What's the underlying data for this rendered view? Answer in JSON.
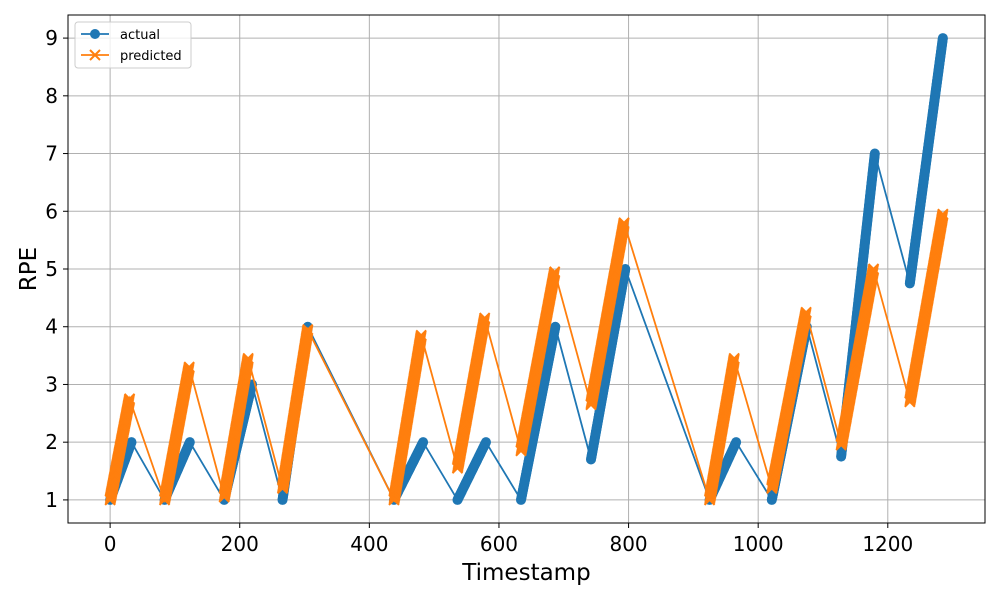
{
  "chart_data": {
    "type": "line",
    "title": "",
    "xlabel": "Timestamp",
    "ylabel": "RPE",
    "xlim": [
      -65,
      1350
    ],
    "ylim": [
      0.6,
      9.4
    ],
    "xticks": [
      0,
      200,
      400,
      600,
      800,
      1000,
      1200
    ],
    "yticks": [
      1,
      2,
      3,
      4,
      5,
      6,
      7,
      8,
      9
    ],
    "grid": true,
    "legend": "top-left",
    "series": [
      {
        "name": "actual",
        "color": "#1f77b4",
        "marker": "circle",
        "segments": [
          {
            "x": [
              0,
              33
            ],
            "y": [
              1,
              2
            ]
          },
          {
            "x": [
              84,
              123
            ],
            "y": [
              1,
              2
            ]
          },
          {
            "x": [
              176,
              219
            ],
            "y": [
              1,
              3
            ]
          },
          {
            "x": [
              266,
              305
            ],
            "y": [
              1,
              4
            ]
          },
          {
            "x": [
              438,
              483
            ],
            "y": [
              1,
              2
            ]
          },
          {
            "x": [
              536,
              580
            ],
            "y": [
              1,
              2
            ]
          },
          {
            "x": [
              634,
              687
            ],
            "y": [
              1,
              4
            ]
          },
          {
            "x": [
              742,
              795
            ],
            "y": [
              1.7,
              5
            ]
          },
          {
            "x": [
              925,
              966
            ],
            "y": [
              1,
              2
            ]
          },
          {
            "x": [
              1021,
              1075
            ],
            "y": [
              1,
              4
            ]
          },
          {
            "x": [
              1128,
              1180
            ],
            "y": [
              1.75,
              7
            ]
          },
          {
            "x": [
              1234,
              1285
            ],
            "y": [
              4.75,
              9
            ]
          }
        ]
      },
      {
        "name": "predicted",
        "color": "#ff7f0e",
        "marker": "x",
        "segments": [
          {
            "x": [
              0,
              30
            ],
            "y": [
              1,
              2.75
            ]
          },
          {
            "x": [
              84,
              122
            ],
            "y": [
              1,
              3.3
            ]
          },
          {
            "x": [
              176,
              213
            ],
            "y": [
              1.05,
              3.45
            ]
          },
          {
            "x": [
              266,
              305
            ],
            "y": [
              1.2,
              3.95
            ]
          },
          {
            "x": [
              438,
              480
            ],
            "y": [
              1,
              3.85
            ]
          },
          {
            "x": [
              536,
              578
            ],
            "y": [
              1.55,
              4.15
            ]
          },
          {
            "x": [
              634,
              686
            ],
            "y": [
              1.85,
              4.95
            ]
          },
          {
            "x": [
              742,
              793
            ],
            "y": [
              2.65,
              5.8
            ]
          },
          {
            "x": [
              925,
              963
            ],
            "y": [
              1,
              3.45
            ]
          },
          {
            "x": [
              1021,
              1074
            ],
            "y": [
              1.2,
              4.25
            ]
          },
          {
            "x": [
              1128,
              1178
            ],
            "y": [
              1.95,
              5
            ]
          },
          {
            "x": [
              1234,
              1285
            ],
            "y": [
              2.7,
              5.95
            ]
          }
        ]
      }
    ]
  }
}
